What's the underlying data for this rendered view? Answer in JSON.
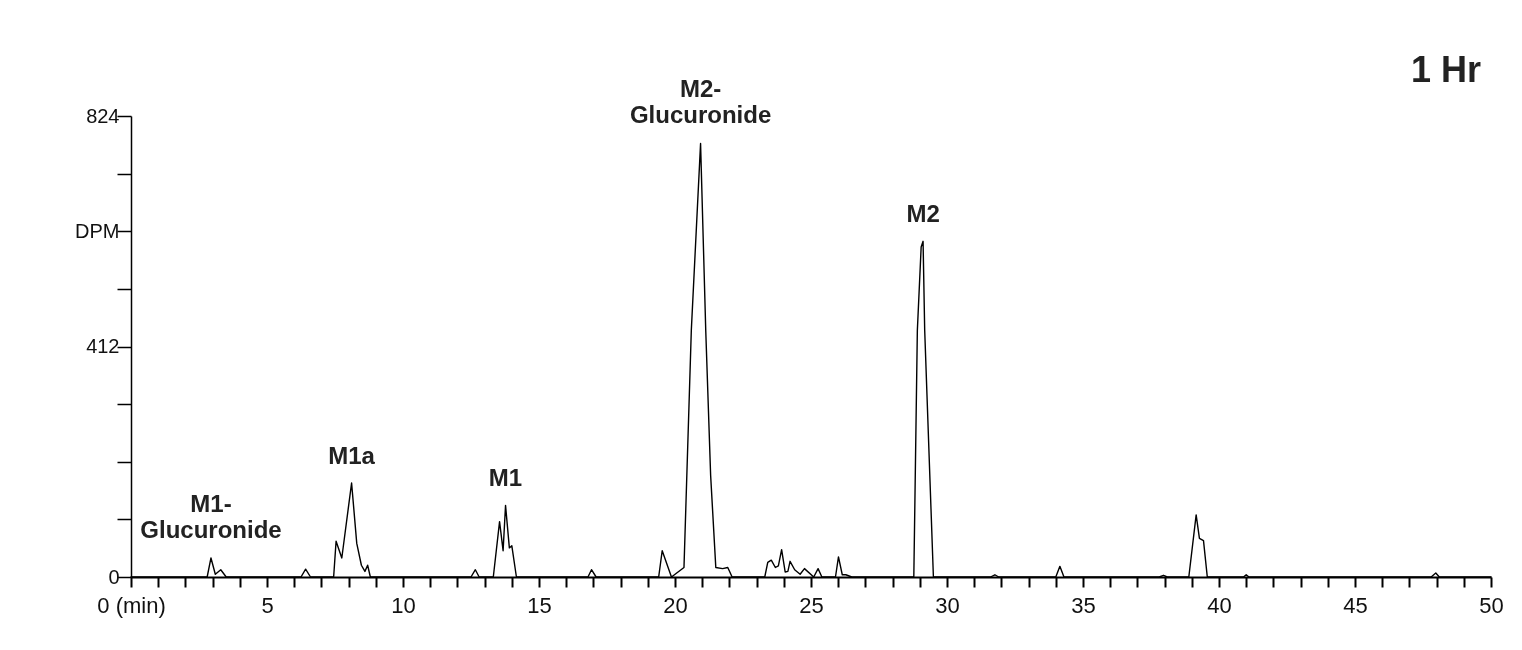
{
  "chart_data": {
    "type": "line",
    "x": [
      0,
      2.8,
      2.94,
      3.1,
      3.3,
      3.5,
      6.25,
      6.42,
      6.6,
      7.45,
      7.54,
      7.75,
      8.11,
      8.3,
      8.47,
      8.6,
      8.7,
      8.8,
      12.5,
      12.66,
      12.8,
      13.32,
      13.55,
      13.68,
      13.77,
      13.91,
      14.0,
      14.17,
      16.8,
      16.93,
      17.1,
      19.4,
      19.53,
      19.87,
      20.33,
      20.6,
      20.94,
      21.13,
      21.31,
      21.5,
      21.75,
      21.94,
      22.1,
      23.3,
      23.41,
      23.54,
      23.69,
      23.8,
      23.92,
      24.05,
      24.15,
      24.23,
      24.4,
      24.6,
      24.76,
      25.1,
      25.26,
      25.4,
      25.9,
      26.01,
      26.15,
      26.28,
      26.5,
      28.78,
      28.91,
      29.05,
      29.12,
      29.18,
      29.5,
      31.6,
      31.76,
      31.9,
      34.0,
      34.15,
      34.3,
      37.8,
      37.96,
      38.1,
      38.89,
      39.16,
      39.28,
      39.43,
      39.57,
      40.9,
      41.0,
      41.1,
      47.8,
      47.97,
      48.1,
      50
    ],
    "series": [
      {
        "color": "#000000",
        "values": [
          0,
          0,
          34,
          5,
          13,
          0,
          0,
          14,
          0,
          0,
          64,
          34,
          168,
          60,
          21,
          10,
          21,
          0,
          0,
          13,
          0,
          0,
          99,
          47,
          128,
          52,
          56,
          0,
          0,
          13,
          0,
          0,
          47,
          0,
          17,
          441,
          775,
          441,
          182,
          17,
          15,
          17,
          0,
          0,
          26,
          30,
          17,
          20,
          49,
          9,
          10,
          28,
          13,
          5,
          15,
          0,
          15,
          0,
          0,
          36,
          4,
          4,
          0,
          0,
          441,
          590,
          600,
          441,
          0,
          0,
          4,
          0,
          0,
          19,
          0,
          0,
          3,
          0,
          0,
          111,
          69,
          65,
          0,
          0,
          4,
          0,
          0,
          7,
          0,
          0
        ]
      }
    ],
    "xlim": [
      0,
      50
    ],
    "xticks": [
      {
        "value": 0,
        "label": "0 (min)"
      },
      {
        "value": 1,
        "label": null
      },
      {
        "value": 2,
        "label": null
      },
      {
        "value": 3,
        "label": null
      },
      {
        "value": 4,
        "label": null
      },
      5,
      {
        "value": 6,
        "label": null
      },
      {
        "value": 7,
        "label": null
      },
      {
        "value": 8,
        "label": null
      },
      {
        "value": 9,
        "label": null
      },
      10,
      {
        "value": 11,
        "label": null
      },
      {
        "value": 12,
        "label": null
      },
      {
        "value": 13,
        "label": null
      },
      {
        "value": 14,
        "label": null
      },
      15,
      {
        "value": 16,
        "label": null
      },
      {
        "value": 17,
        "label": null
      },
      {
        "value": 18,
        "label": null
      },
      {
        "value": 19,
        "label": null
      },
      20,
      {
        "value": 21,
        "label": null
      },
      {
        "value": 22,
        "label": null
      },
      {
        "value": 23,
        "label": null
      },
      {
        "value": 24,
        "label": null
      },
      25,
      {
        "value": 26,
        "label": null
      },
      {
        "value": 27,
        "label": null
      },
      {
        "value": 28,
        "label": null
      },
      {
        "value": 29,
        "label": null
      },
      30,
      {
        "value": 31,
        "label": null
      },
      {
        "value": 32,
        "label": null
      },
      {
        "value": 33,
        "label": null
      },
      {
        "value": 34,
        "label": null
      },
      35,
      {
        "value": 36,
        "label": null
      },
      {
        "value": 37,
        "label": null
      },
      {
        "value": 38,
        "label": null
      },
      {
        "value": 39,
        "label": null
      },
      40,
      {
        "value": 41,
        "label": null
      },
      {
        "value": 42,
        "label": null
      },
      {
        "value": 43,
        "label": null
      },
      {
        "value": 44,
        "label": null
      },
      45,
      {
        "value": 46,
        "label": null
      },
      {
        "value": 47,
        "label": null
      },
      {
        "value": 48,
        "label": null
      },
      {
        "value": 49,
        "label": null
      },
      50
    ],
    "ylim": [
      0,
      824
    ],
    "yticks": [
      0,
      {
        "value": 103,
        "label": null
      },
      {
        "value": 206,
        "label": null
      },
      {
        "value": 309,
        "label": null
      },
      412,
      {
        "value": 515,
        "label": null
      },
      {
        "value": 618,
        "label": "DPM"
      },
      {
        "value": 721,
        "label": null
      },
      824
    ],
    "grid": false,
    "annotations": [
      {
        "text": "M1-\nGlucuronide",
        "x": 2.94,
        "y": 34
      },
      {
        "text": "M1a",
        "x": 8.11,
        "y": 168
      },
      {
        "text": "M1",
        "x": 13.77,
        "y": 128
      },
      {
        "text": "M2-\nGlucuronide",
        "x": 20.94,
        "y": 775
      },
      {
        "text": "M2",
        "x": 29.12,
        "y": 600
      },
      "1 Hr"
    ]
  }
}
